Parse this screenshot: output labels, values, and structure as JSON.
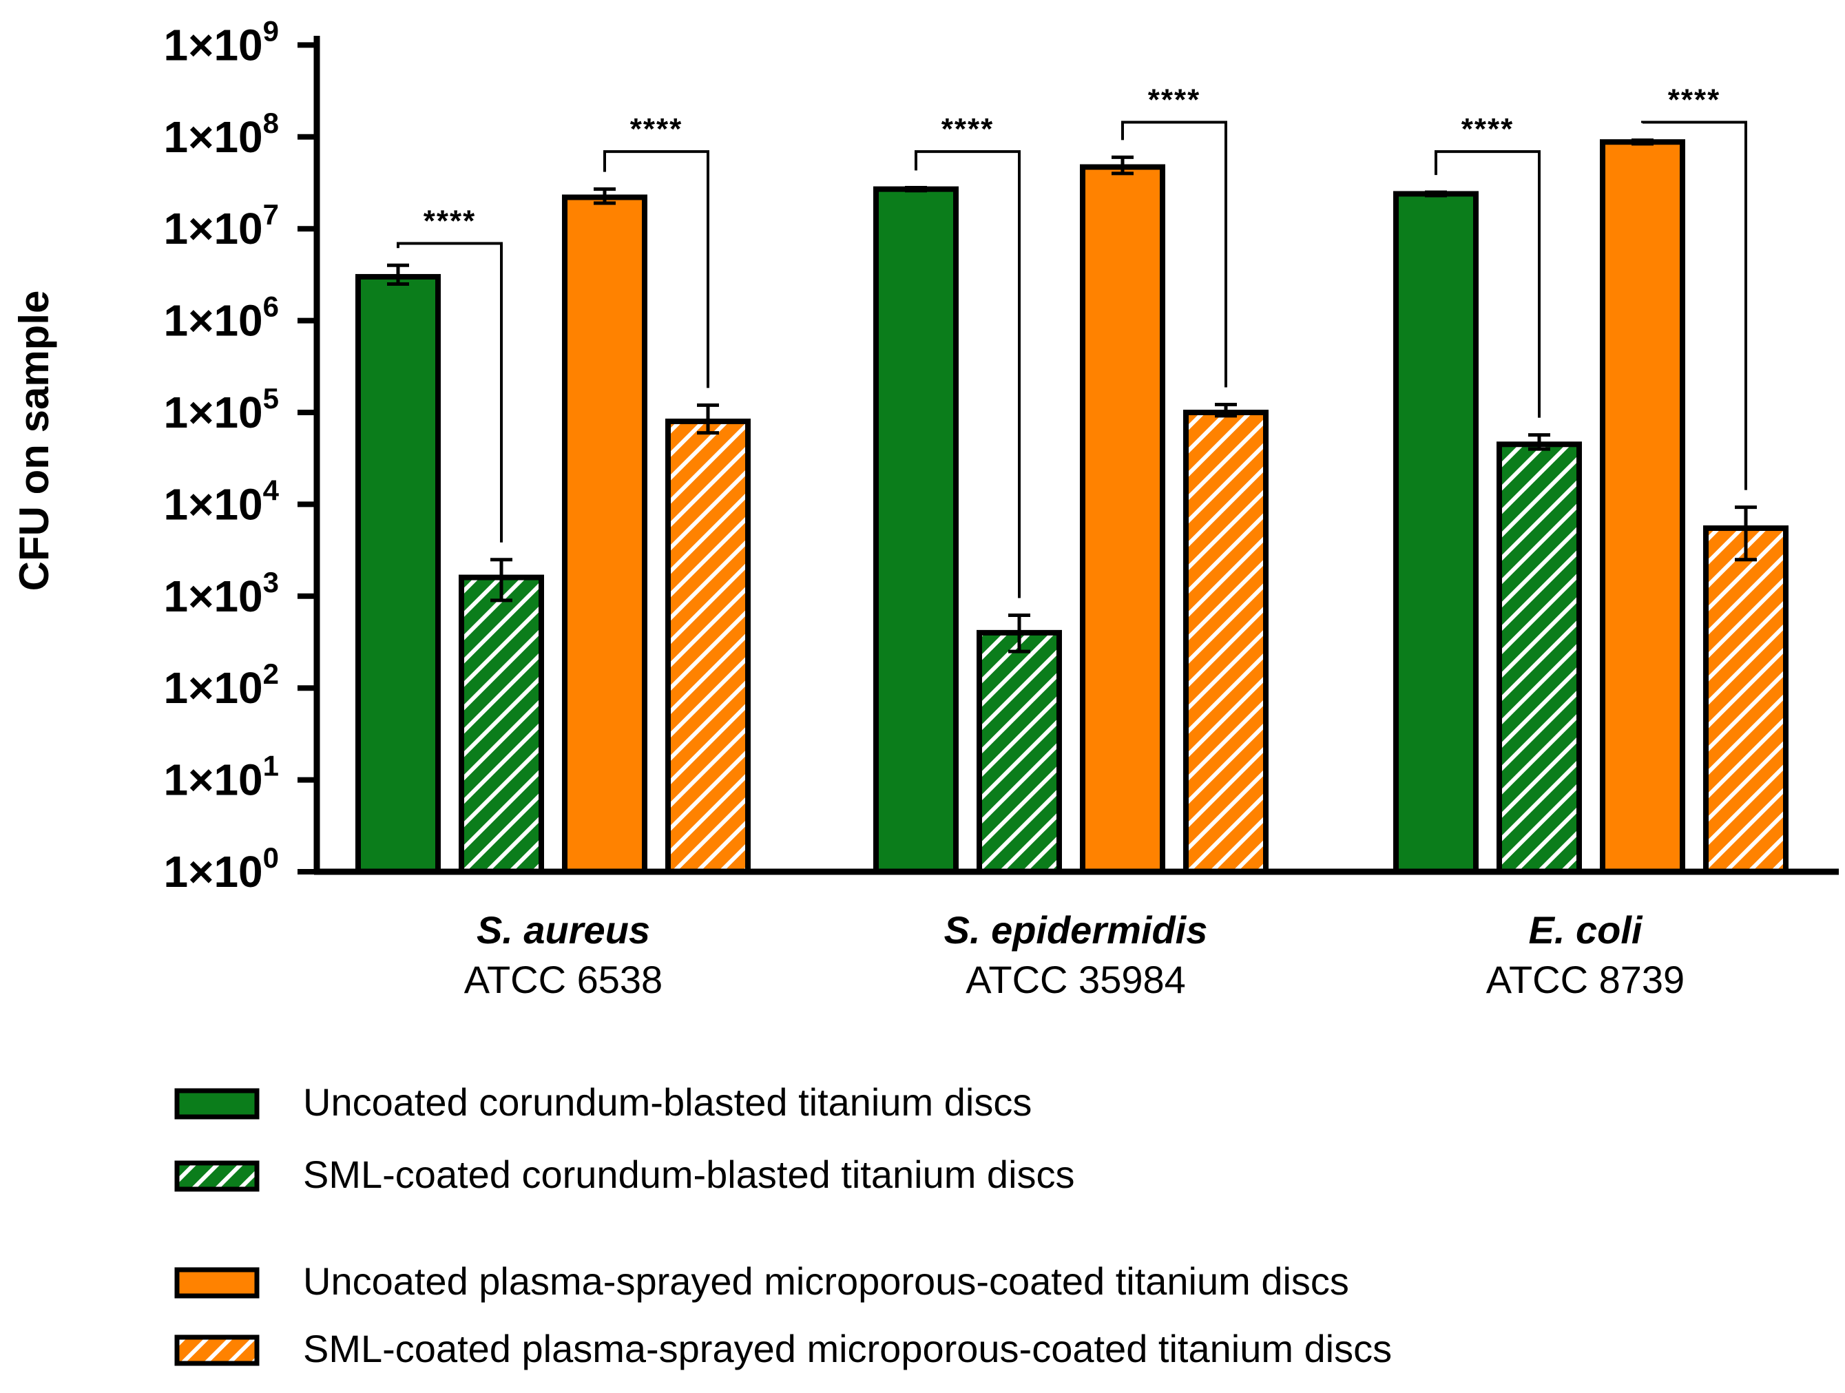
{
  "colors": {
    "green": "#0b7d1b",
    "orange": "#ff8200",
    "outline": "#000000",
    "hatch": "#ffffff"
  },
  "chart_data": {
    "type": "bar",
    "scale": "log10",
    "ylabel": "CFU on sample",
    "ylim": [
      1,
      1000000000
    ],
    "yticks": [
      {
        "exp": 0,
        "base": "1×10",
        "sup": "0"
      },
      {
        "exp": 1,
        "base": "1×10",
        "sup": "1"
      },
      {
        "exp": 2,
        "base": "1×10",
        "sup": "2"
      },
      {
        "exp": 3,
        "base": "1×10",
        "sup": "3"
      },
      {
        "exp": 4,
        "base": "1×10",
        "sup": "4"
      },
      {
        "exp": 5,
        "base": "1×10",
        "sup": "5"
      },
      {
        "exp": 6,
        "base": "1×10",
        "sup": "6"
      },
      {
        "exp": 7,
        "base": "1×10",
        "sup": "7"
      },
      {
        "exp": 8,
        "base": "1×10",
        "sup": "8"
      },
      {
        "exp": 9,
        "base": "1×10",
        "sup": "9"
      }
    ],
    "categories": [
      {
        "species": "S. aureus",
        "strain": "ATCC 6538"
      },
      {
        "species": "S.  epidermidis",
        "strain": "ATCC 35984"
      },
      {
        "species": "E. coli",
        "strain": "ATCC 8739"
      }
    ],
    "series": [
      {
        "name": "Uncoated corundum-blasted titanium discs",
        "color": "green",
        "hatched": false,
        "values": [
          3000000,
          27000000,
          24000000
        ],
        "err_low": [
          2500000,
          26000000,
          23000000
        ],
        "err_high": [
          4000000,
          28000000,
          25000000
        ]
      },
      {
        "name": "SML-coated corundum-blasted titanium discs",
        "color": "green",
        "hatched": true,
        "values": [
          1600,
          400,
          45000
        ],
        "err_low": [
          900,
          250,
          40000
        ],
        "err_high": [
          2500,
          620,
          57000
        ]
      },
      {
        "name": "Uncoated plasma-sprayed microporous-coated titanium discs",
        "color": "orange",
        "hatched": false,
        "values": [
          22000000,
          47000000,
          88000000
        ],
        "err_low": [
          19000000,
          40000000,
          84000000
        ],
        "err_high": [
          27000000,
          60000000,
          92000000
        ]
      },
      {
        "name": "SML-coated plasma-sprayed microporous-coated titanium discs",
        "color": "orange",
        "hatched": true,
        "values": [
          80000,
          100000,
          5500
        ],
        "err_low": [
          60000,
          92000,
          2500
        ],
        "err_high": [
          120000,
          122000,
          9300
        ]
      }
    ],
    "significance": [
      {
        "group": 0,
        "from": 0,
        "to": 1,
        "label": "****",
        "bracket_exp": 6.84
      },
      {
        "group": 0,
        "from": 2,
        "to": 3,
        "label": "****",
        "bracket_exp": 7.84
      },
      {
        "group": 1,
        "from": 0,
        "to": 1,
        "label": "****",
        "bracket_exp": 7.84
      },
      {
        "group": 1,
        "from": 2,
        "to": 3,
        "label": "****",
        "bracket_exp": 8.16
      },
      {
        "group": 2,
        "from": 0,
        "to": 1,
        "label": "****",
        "bracket_exp": 7.84
      },
      {
        "group": 2,
        "from": 2,
        "to": 3,
        "label": "****",
        "bracket_exp": 8.16
      }
    ],
    "legend": [
      {
        "label": "Uncoated corundum-blasted titanium discs",
        "color": "green",
        "hatched": false
      },
      {
        "label": "SML-coated corundum-blasted titanium discs",
        "color": "green",
        "hatched": true
      },
      {
        "label": "Uncoated plasma-sprayed microporous-coated titanium discs",
        "color": "orange",
        "hatched": false
      },
      {
        "label": "SML-coated plasma-sprayed microporous-coated titanium discs",
        "color": "orange",
        "hatched": true
      }
    ],
    "legend_position": "bottom"
  }
}
